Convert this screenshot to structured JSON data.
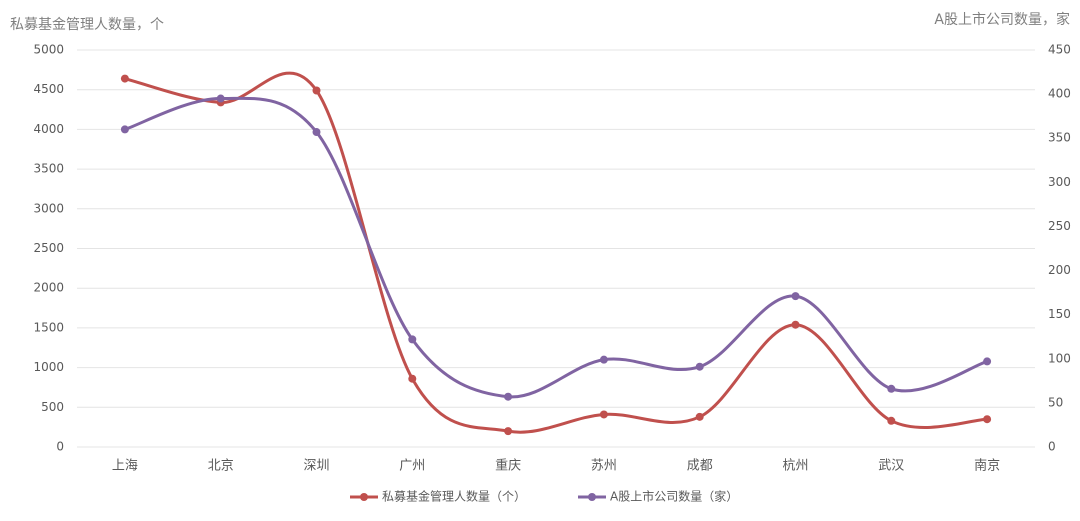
{
  "chart_data": {
    "type": "line",
    "y_label": "私募基金管理人数量，个",
    "y2_label": "A股上市公司数量，家",
    "categories": [
      "上海",
      "北京",
      "深圳",
      "广州",
      "重庆",
      "苏州",
      "成都",
      "杭州",
      "武汉",
      "南京"
    ],
    "series": [
      {
        "name": "私募基金管理人数量（个）",
        "color": "#c0504d",
        "values": [
          4640,
          4340,
          4490,
          860,
          200,
          410,
          380,
          1540,
          330,
          350
        ]
      },
      {
        "name": "A股上市公司数量（家）",
        "color": "#8064a2",
        "axis": "y2",
        "values": [
          360,
          395,
          357,
          122,
          57,
          99,
          91,
          171,
          66,
          97
        ]
      }
    ],
    "ylim": [
      0,
      5000
    ],
    "yticks": [
      0,
      500,
      1000,
      1500,
      2000,
      2500,
      3000,
      3500,
      4000,
      4500,
      5000
    ],
    "y2lim": [
      0,
      450
    ],
    "y2ticks": [
      0,
      50,
      100,
      150,
      200,
      250,
      300,
      350,
      400,
      450
    ],
    "grid": true,
    "smooth": true,
    "legend": "bottom"
  }
}
